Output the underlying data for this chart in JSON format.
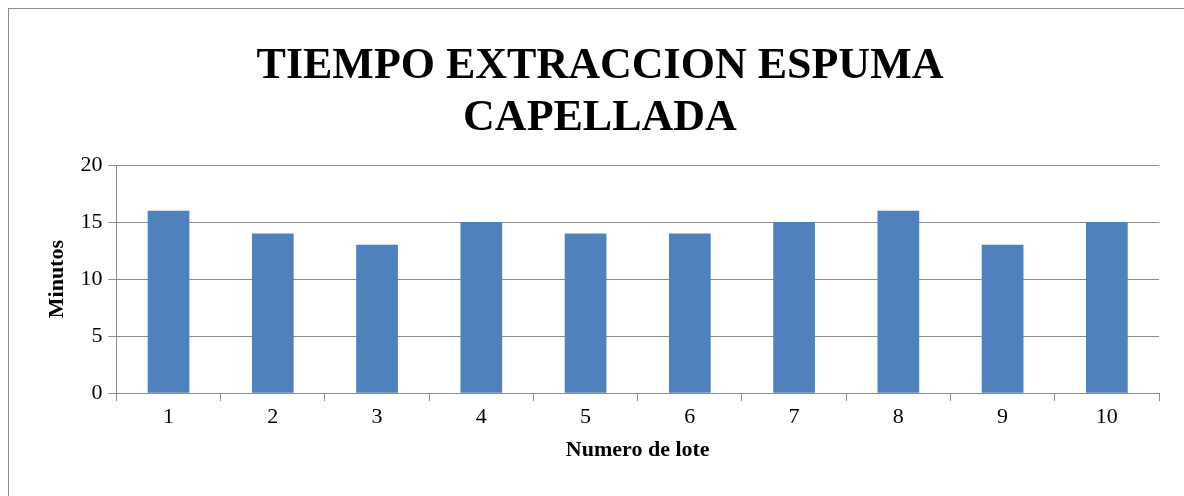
{
  "chart_data": {
    "type": "bar",
    "title": "TIEMPO EXTRACCION ESPUMA CAPELLADA",
    "xlabel": "Numero de lote",
    "ylabel": "Minutos",
    "categories": [
      "1",
      "2",
      "3",
      "4",
      "5",
      "6",
      "7",
      "8",
      "9",
      "10"
    ],
    "values": [
      16,
      14,
      13,
      15,
      14,
      14,
      15,
      16,
      13,
      15
    ],
    "color": "#4f81bd",
    "ylim": [
      0,
      20
    ],
    "yticks": [
      0,
      5,
      10,
      15,
      20
    ],
    "grid": "y",
    "legend": false
  }
}
